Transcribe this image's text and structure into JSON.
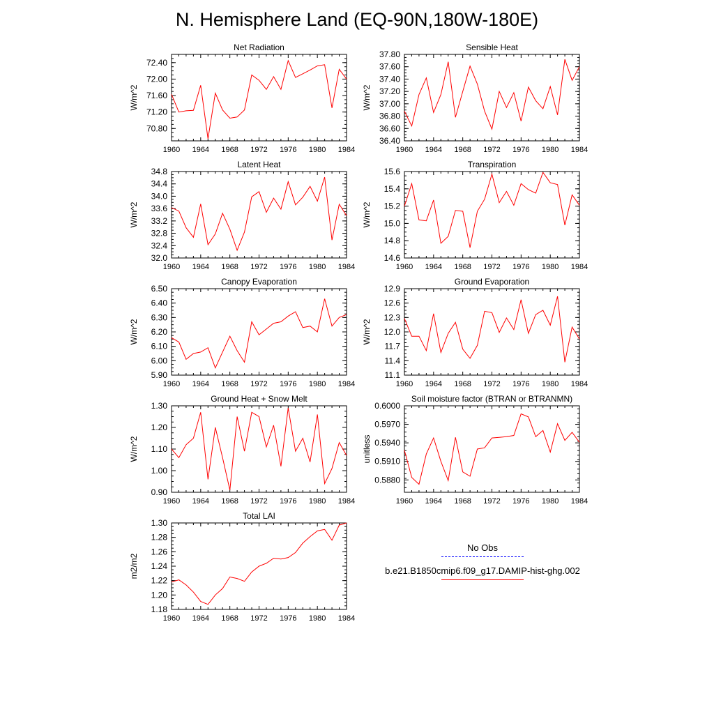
{
  "title": "N. Hemisphere Land (EQ-90N,180W-180E)",
  "legend": {
    "obs_label": "No Obs",
    "model_label": "b.e21.B1850cmip6.f09_g17.DAMIP-hist-ghg.002",
    "obs_color": "#0000ff",
    "model_color": "#ff0000"
  },
  "chart_data": [
    {
      "type": "line",
      "title": "Net Radiation",
      "ylabel": "W/m^2",
      "xlim": [
        1960,
        1984
      ],
      "ylim": [
        70.5,
        72.6
      ],
      "xticks": [
        "1960",
        "1964",
        "1968",
        "1972",
        "1976",
        "1980",
        "1984"
      ],
      "yticks": [
        "70.80",
        "71.20",
        "71.60",
        "72.00",
        "72.40"
      ],
      "x": [
        1960,
        1961,
        1962,
        1963,
        1964,
        1965,
        1966,
        1967,
        1968,
        1969,
        1970,
        1971,
        1972,
        1973,
        1974,
        1975,
        1976,
        1977,
        1978,
        1979,
        1980,
        1981,
        1982,
        1983,
        1984
      ],
      "series": [
        {
          "color": "#ff0000",
          "values": [
            71.63,
            71.2,
            71.23,
            71.24,
            71.85,
            70.55,
            71.66,
            71.25,
            71.05,
            71.08,
            71.25,
            72.1,
            71.97,
            71.75,
            72.06,
            71.75,
            72.45,
            72.04,
            72.13,
            72.22,
            72.32,
            72.35,
            71.3,
            72.24,
            72.0
          ]
        }
      ]
    },
    {
      "type": "line",
      "title": "Sensible Heat",
      "ylabel": "W/m^2",
      "xlim": [
        1960,
        1984
      ],
      "ylim": [
        36.4,
        37.8
      ],
      "xticks": [
        "1960",
        "1964",
        "1968",
        "1972",
        "1976",
        "1980",
        "1984"
      ],
      "yticks": [
        "36.40",
        "36.60",
        "36.80",
        "37.00",
        "37.20",
        "37.40",
        "37.60",
        "37.80"
      ],
      "x": [
        1960,
        1961,
        1962,
        1963,
        1964,
        1965,
        1966,
        1967,
        1968,
        1969,
        1970,
        1971,
        1972,
        1973,
        1974,
        1975,
        1976,
        1977,
        1978,
        1979,
        1980,
        1981,
        1982,
        1983,
        1984
      ],
      "series": [
        {
          "color": "#ff0000",
          "values": [
            36.88,
            36.64,
            37.15,
            37.42,
            36.86,
            37.15,
            37.68,
            36.78,
            37.2,
            37.61,
            37.32,
            36.88,
            36.59,
            37.2,
            36.94,
            37.18,
            36.72,
            37.27,
            37.05,
            36.92,
            37.28,
            36.82,
            37.72,
            37.38,
            37.6
          ]
        }
      ]
    },
    {
      "type": "line",
      "title": "Latent Heat",
      "ylabel": "W/m^2",
      "xlim": [
        1960,
        1984
      ],
      "ylim": [
        32.0,
        34.8
      ],
      "xticks": [
        "1960",
        "1964",
        "1968",
        "1972",
        "1976",
        "1980",
        "1984"
      ],
      "yticks": [
        "32.0",
        "32.4",
        "32.8",
        "33.2",
        "33.6",
        "34.0",
        "34.4",
        "34.8"
      ],
      "x": [
        1960,
        1961,
        1962,
        1963,
        1964,
        1965,
        1966,
        1967,
        1968,
        1969,
        1970,
        1971,
        1972,
        1973,
        1974,
        1975,
        1976,
        1977,
        1978,
        1979,
        1980,
        1981,
        1982,
        1983,
        1984
      ],
      "series": [
        {
          "color": "#ff0000",
          "values": [
            33.63,
            33.52,
            32.98,
            32.67,
            33.75,
            32.43,
            32.78,
            33.45,
            32.93,
            32.25,
            32.84,
            33.98,
            34.15,
            33.48,
            33.94,
            33.58,
            34.47,
            33.72,
            33.97,
            34.32,
            33.84,
            34.62,
            32.58,
            33.74,
            33.37
          ]
        }
      ]
    },
    {
      "type": "line",
      "title": "Transpiration",
      "ylabel": "W/m^2",
      "xlim": [
        1960,
        1984
      ],
      "ylim": [
        14.6,
        15.6
      ],
      "xticks": [
        "1960",
        "1964",
        "1968",
        "1972",
        "1976",
        "1980",
        "1984"
      ],
      "yticks": [
        "14.6",
        "14.8",
        "15.0",
        "15.2",
        "15.4",
        "15.6"
      ],
      "x": [
        1960,
        1961,
        1962,
        1963,
        1964,
        1965,
        1966,
        1967,
        1968,
        1969,
        1970,
        1971,
        1972,
        1973,
        1974,
        1975,
        1976,
        1977,
        1978,
        1979,
        1980,
        1981,
        1982,
        1983,
        1984
      ],
      "series": [
        {
          "color": "#ff0000",
          "values": [
            15.2,
            15.46,
            15.04,
            15.03,
            15.27,
            14.77,
            14.85,
            15.15,
            15.14,
            14.72,
            15.14,
            15.28,
            15.57,
            15.24,
            15.37,
            15.21,
            15.46,
            15.39,
            15.35,
            15.59,
            15.47,
            15.45,
            14.98,
            15.33,
            15.21
          ]
        }
      ]
    },
    {
      "type": "line",
      "title": "Canopy Evaporation",
      "ylabel": "W/m^2",
      "xlim": [
        1960,
        1984
      ],
      "ylim": [
        5.9,
        6.5
      ],
      "xticks": [
        "1960",
        "1964",
        "1968",
        "1972",
        "1976",
        "1980",
        "1984"
      ],
      "yticks": [
        "5.90",
        "6.00",
        "6.10",
        "6.20",
        "6.30",
        "6.40",
        "6.50"
      ],
      "x": [
        1960,
        1961,
        1962,
        1963,
        1964,
        1965,
        1966,
        1967,
        1968,
        1969,
        1970,
        1971,
        1972,
        1973,
        1974,
        1975,
        1976,
        1977,
        1978,
        1979,
        1980,
        1981,
        1982,
        1983,
        1984
      ],
      "series": [
        {
          "color": "#ff0000",
          "values": [
            6.16,
            6.13,
            6.01,
            6.05,
            6.06,
            6.09,
            5.95,
            6.06,
            6.17,
            6.07,
            5.99,
            6.27,
            6.18,
            6.22,
            6.26,
            6.27,
            6.31,
            6.34,
            6.23,
            6.24,
            6.2,
            6.43,
            6.24,
            6.3,
            6.32
          ]
        }
      ]
    },
    {
      "type": "line",
      "title": "Ground Evaporation",
      "ylabel": "W/m^2",
      "xlim": [
        1960,
        1984
      ],
      "ylim": [
        11.1,
        12.9
      ],
      "xticks": [
        "1960",
        "1964",
        "1968",
        "1972",
        "1976",
        "1980",
        "1984"
      ],
      "yticks": [
        "11.1",
        "11.4",
        "11.7",
        "12.0",
        "12.3",
        "12.6",
        "12.9"
      ],
      "x": [
        1960,
        1961,
        1962,
        1963,
        1964,
        1965,
        1966,
        1967,
        1968,
        1969,
        1970,
        1971,
        1972,
        1973,
        1974,
        1975,
        1976,
        1977,
        1978,
        1979,
        1980,
        1981,
        1982,
        1983,
        1984
      ],
      "series": [
        {
          "color": "#ff0000",
          "values": [
            12.28,
            11.91,
            11.91,
            11.61,
            12.38,
            11.57,
            11.97,
            12.2,
            11.64,
            11.45,
            11.72,
            12.43,
            12.4,
            11.99,
            12.29,
            12.05,
            12.67,
            11.97,
            12.36,
            12.45,
            12.14,
            12.74,
            11.37,
            12.1,
            11.85
          ]
        }
      ]
    },
    {
      "type": "line",
      "title": "Ground Heat + Snow Melt",
      "ylabel": "W/m^2",
      "xlim": [
        1960,
        1984
      ],
      "ylim": [
        0.9,
        1.3
      ],
      "xticks": [
        "1960",
        "1964",
        "1968",
        "1972",
        "1976",
        "1980",
        "1984"
      ],
      "yticks": [
        "0.90",
        "1.00",
        "1.10",
        "1.20",
        "1.30"
      ],
      "x": [
        1960,
        1961,
        1962,
        1963,
        1964,
        1965,
        1966,
        1967,
        1968,
        1969,
        1970,
        1971,
        1972,
        1973,
        1974,
        1975,
        1976,
        1977,
        1978,
        1979,
        1980,
        1981,
        1982,
        1983,
        1984
      ],
      "series": [
        {
          "color": "#ff0000",
          "values": [
            1.1,
            1.06,
            1.12,
            1.15,
            1.27,
            0.96,
            1.2,
            1.06,
            0.91,
            1.25,
            1.09,
            1.27,
            1.25,
            1.11,
            1.21,
            1.02,
            1.29,
            1.09,
            1.15,
            1.04,
            1.26,
            0.94,
            1.01,
            1.13,
            1.07
          ]
        }
      ]
    },
    {
      "type": "line",
      "title": "Soil moisture factor (BTRAN or BTRANMN)",
      "ylabel": "unitless",
      "xlim": [
        1960,
        1984
      ],
      "ylim": [
        0.586,
        0.6
      ],
      "xticks": [
        "1960",
        "1964",
        "1968",
        "1972",
        "1976",
        "1980",
        "1984"
      ],
      "yticks": [
        "0.5880",
        "0.5910",
        "0.5940",
        "0.5970",
        "0.6000"
      ],
      "x": [
        1960,
        1961,
        1962,
        1963,
        1964,
        1965,
        1966,
        1967,
        1968,
        1969,
        1970,
        1971,
        1972,
        1973,
        1974,
        1975,
        1976,
        1977,
        1978,
        1979,
        1980,
        1981,
        1982,
        1983,
        1984
      ],
      "series": [
        {
          "color": "#ff0000",
          "values": [
            0.5928,
            0.5884,
            0.5873,
            0.5922,
            0.5948,
            0.591,
            0.5879,
            0.5949,
            0.5893,
            0.5886,
            0.593,
            0.5932,
            0.5948,
            0.5949,
            0.595,
            0.5952,
            0.5987,
            0.5982,
            0.595,
            0.596,
            0.5925,
            0.5971,
            0.5944,
            0.5957,
            0.5941
          ]
        }
      ]
    },
    {
      "type": "line",
      "title": "Total LAI",
      "ylabel": "m2/m2",
      "xlim": [
        1960,
        1984
      ],
      "ylim": [
        1.18,
        1.3
      ],
      "xticks": [
        "1960",
        "1964",
        "1968",
        "1972",
        "1976",
        "1980",
        "1984"
      ],
      "yticks": [
        "1.18",
        "1.20",
        "1.22",
        "1.24",
        "1.26",
        "1.28",
        "1.30"
      ],
      "x": [
        1960,
        1961,
        1962,
        1963,
        1964,
        1965,
        1966,
        1967,
        1968,
        1969,
        1970,
        1971,
        1972,
        1973,
        1974,
        1975,
        1976,
        1977,
        1978,
        1979,
        1980,
        1981,
        1982,
        1983,
        1984
      ],
      "series": [
        {
          "color": "#ff0000",
          "values": [
            1.218,
            1.221,
            1.214,
            1.204,
            1.191,
            1.187,
            1.2,
            1.209,
            1.225,
            1.223,
            1.219,
            1.232,
            1.24,
            1.244,
            1.251,
            1.25,
            1.252,
            1.259,
            1.272,
            1.281,
            1.289,
            1.291,
            1.276,
            1.297,
            1.3
          ]
        }
      ]
    }
  ]
}
